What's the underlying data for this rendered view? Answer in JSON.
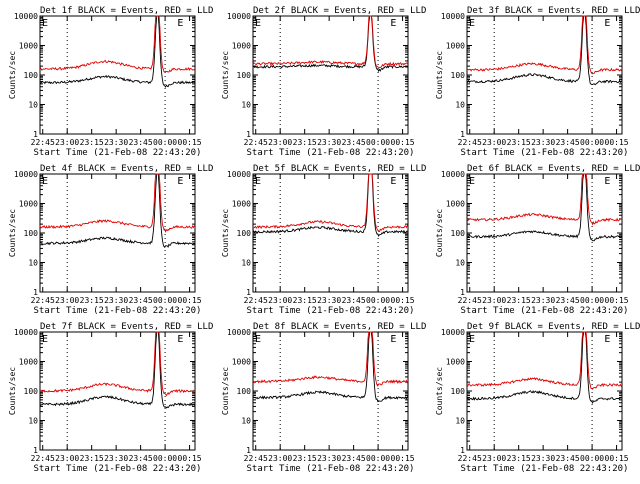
{
  "figure": {
    "xlabel": "Start Time (21-Feb-08 22:43:20)",
    "ylabel": "Counts/sec"
  },
  "chart_data": [
    {
      "type": "line",
      "title": "Det 1f BLACK = Events, RED = LLD",
      "markers": [
        "E",
        "E"
      ],
      "xlabel": "Start Time (21-Feb-08 22:43:20)",
      "ylabel": "Counts/sec",
      "x_ticks": [
        "22:45",
        "23:00",
        "23:15",
        "23:30",
        "23:45",
        "00:00",
        "00:15"
      ],
      "y_ticks": [
        "1",
        "10",
        "100",
        "1000",
        "10000"
      ],
      "y_scale": "log",
      "ylim": [
        1,
        10000
      ],
      "xlim_minutes": [
        0,
        95
      ],
      "dotted_lines_at": [
        "23:00",
        "00:00"
      ],
      "series": [
        {
          "color": "#000000",
          "base": 55,
          "hump": 1.6,
          "peak": 2.5
        },
        {
          "color": "#e00000",
          "base": 160,
          "hump": 1.8,
          "peak": 2.8
        }
      ]
    },
    {
      "type": "line",
      "title": "Det 2f BLACK = Events, RED = LLD",
      "markers": [
        "E",
        "E"
      ],
      "xlabel": "Start Time (21-Feb-08 22:43:20)",
      "ylabel": "Counts/sec",
      "x_ticks": [
        "22:45",
        "23:00",
        "23:15",
        "23:30",
        "23:45",
        "00:00",
        "00:15"
      ],
      "y_ticks": [
        "1",
        "10",
        "100",
        "1000",
        "10000"
      ],
      "y_scale": "log",
      "ylim": [
        1,
        10000
      ],
      "xlim_minutes": [
        0,
        95
      ],
      "dotted_lines_at": [
        "23:00",
        "00:00"
      ],
      "series": [
        {
          "color": "#000000",
          "base": 190,
          "hump": 1.1,
          "peak": 2.0
        },
        {
          "color": "#e00000",
          "base": 240,
          "hump": 1.15,
          "peak": 2.1
        }
      ]
    },
    {
      "type": "line",
      "title": "Det 3f BLACK = Events, RED = LLD",
      "markers": [
        "E",
        "E"
      ],
      "xlabel": "Start Time (21-Feb-08 22:43:20)",
      "ylabel": "Counts/sec",
      "x_ticks": [
        "22:45",
        "23:00",
        "23:15",
        "23:30",
        "23:45",
        "00:00",
        "00:15"
      ],
      "y_ticks": [
        "1",
        "10",
        "100",
        "1000",
        "10000"
      ],
      "y_scale": "log",
      "ylim": [
        1,
        10000
      ],
      "xlim_minutes": [
        0,
        95
      ],
      "dotted_lines_at": [
        "23:00",
        "00:00"
      ],
      "series": [
        {
          "color": "#000000",
          "base": 60,
          "hump": 1.7,
          "peak": 2.6
        },
        {
          "color": "#e00000",
          "base": 150,
          "hump": 1.6,
          "peak": 2.8
        }
      ]
    },
    {
      "type": "line",
      "title": "Det 4f BLACK = Events, RED = LLD",
      "markers": [
        "E",
        "E"
      ],
      "xlabel": "Start Time (21-Feb-08 22:43:20)",
      "ylabel": "Counts/sec",
      "x_ticks": [
        "22:45",
        "23:00",
        "23:15",
        "23:30",
        "23:45",
        "00:00",
        "00:15"
      ],
      "y_ticks": [
        "1",
        "10",
        "100",
        "1000",
        "10000"
      ],
      "y_scale": "log",
      "ylim": [
        1,
        10000
      ],
      "xlim_minutes": [
        0,
        95
      ],
      "dotted_lines_at": [
        "23:00",
        "00:00"
      ],
      "series": [
        {
          "color": "#000000",
          "base": 45,
          "hump": 1.5,
          "peak": 2.6
        },
        {
          "color": "#e00000",
          "base": 160,
          "hump": 1.6,
          "peak": 3.0
        }
      ]
    },
    {
      "type": "line",
      "title": "Det 5f BLACK = Events, RED = LLD",
      "markers": [
        "E",
        "E"
      ],
      "xlabel": "Start Time (21-Feb-08 22:43:20)",
      "ylabel": "Counts/sec",
      "x_ticks": [
        "22:45",
        "23:00",
        "23:15",
        "23:30",
        "23:45",
        "00:00",
        "00:15"
      ],
      "y_ticks": [
        "1",
        "10",
        "100",
        "1000",
        "10000"
      ],
      "y_scale": "log",
      "ylim": [
        1,
        10000
      ],
      "xlim_minutes": [
        0,
        95
      ],
      "dotted_lines_at": [
        "23:00",
        "00:00"
      ],
      "series": [
        {
          "color": "#000000",
          "base": 110,
          "hump": 1.4,
          "peak": 2.8
        },
        {
          "color": "#e00000",
          "base": 160,
          "hump": 1.5,
          "peak": 3.0
        }
      ]
    },
    {
      "type": "line",
      "title": "Det 6f BLACK = Events, RED = LLD",
      "markers": [
        "E",
        "E"
      ],
      "xlabel": "Start Time (21-Feb-08 22:43:20)",
      "ylabel": "Counts/sec",
      "x_ticks": [
        "22:45",
        "23:00",
        "23:15",
        "23:30",
        "23:45",
        "00:00",
        "00:15"
      ],
      "y_ticks": [
        "1",
        "10",
        "100",
        "1000",
        "10000"
      ],
      "y_scale": "log",
      "ylim": [
        1,
        10000
      ],
      "xlim_minutes": [
        0,
        95
      ],
      "dotted_lines_at": [
        "23:00",
        "00:00"
      ],
      "series": [
        {
          "color": "#000000",
          "base": 75,
          "hump": 1.5,
          "peak": 2.6
        },
        {
          "color": "#e00000",
          "base": 280,
          "hump": 1.5,
          "peak": 2.8
        }
      ]
    },
    {
      "type": "line",
      "title": "Det 7f BLACK = Events, RED = LLD",
      "markers": [
        "E",
        "E"
      ],
      "xlabel": "Start Time (21-Feb-08 22:43:20)",
      "ylabel": "Counts/sec",
      "x_ticks": [
        "22:45",
        "23:00",
        "23:15",
        "23:30",
        "23:45",
        "00:00",
        "00:15"
      ],
      "y_ticks": [
        "1",
        "10",
        "100",
        "1000",
        "10000"
      ],
      "y_scale": "log",
      "ylim": [
        1,
        10000
      ],
      "xlim_minutes": [
        0,
        95
      ],
      "dotted_lines_at": [
        "23:00",
        "00:00"
      ],
      "series": [
        {
          "color": "#000000",
          "base": 35,
          "hump": 1.8,
          "peak": 2.8
        },
        {
          "color": "#e00000",
          "base": 100,
          "hump": 1.7,
          "peak": 3.0
        }
      ]
    },
    {
      "type": "line",
      "title": "Det 8f BLACK = Events, RED = LLD",
      "markers": [
        "E",
        "E"
      ],
      "xlabel": "Start Time (21-Feb-08 22:43:20)",
      "ylabel": "Counts/sec",
      "x_ticks": [
        "22:45",
        "23:00",
        "23:15",
        "23:30",
        "23:45",
        "00:00",
        "00:15"
      ],
      "y_ticks": [
        "1",
        "10",
        "100",
        "1000",
        "10000"
      ],
      "y_scale": "log",
      "ylim": [
        1,
        10000
      ],
      "xlim_minutes": [
        0,
        95
      ],
      "dotted_lines_at": [
        "23:00",
        "00:00"
      ],
      "series": [
        {
          "color": "#000000",
          "base": 60,
          "hump": 1.5,
          "peak": 2.7
        },
        {
          "color": "#e00000",
          "base": 210,
          "hump": 1.4,
          "peak": 2.9
        }
      ]
    },
    {
      "type": "line",
      "title": "Det 9f BLACK = Events, RED = LLD",
      "markers": [
        "E",
        "E"
      ],
      "xlabel": "Start Time (21-Feb-08 22:43:20)",
      "ylabel": "Counts/sec",
      "x_ticks": [
        "22:45",
        "23:00",
        "23:15",
        "23:30",
        "23:45",
        "00:00",
        "00:15"
      ],
      "y_ticks": [
        "1",
        "10",
        "100",
        "1000",
        "10000"
      ],
      "y_scale": "log",
      "ylim": [
        1,
        10000
      ],
      "xlim_minutes": [
        0,
        95
      ],
      "dotted_lines_at": [
        "23:00",
        "00:00"
      ],
      "series": [
        {
          "color": "#000000",
          "base": 55,
          "hump": 1.7,
          "peak": 2.8
        },
        {
          "color": "#e00000",
          "base": 160,
          "hump": 1.6,
          "peak": 3.0
        }
      ]
    }
  ]
}
